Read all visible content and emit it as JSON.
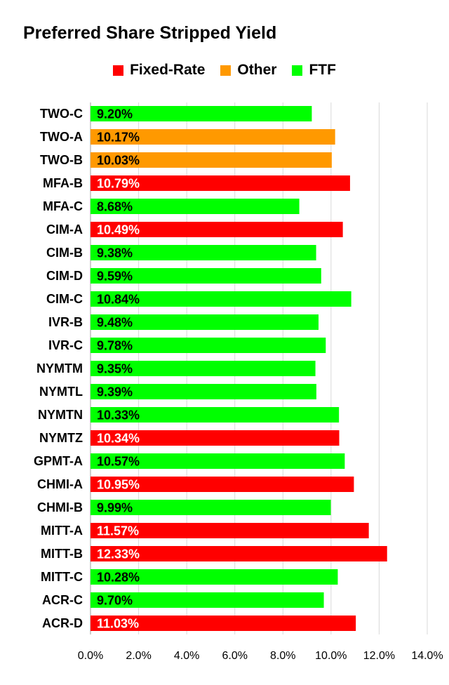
{
  "chart_data": {
    "type": "bar",
    "orientation": "horizontal",
    "title": "Preferred Share Stripped Yield",
    "xlabel": "",
    "ylabel": "",
    "xlim": [
      0,
      14
    ],
    "x_ticks": [
      "0.0%",
      "2.0%",
      "4.0%",
      "6.0%",
      "8.0%",
      "10.0%",
      "12.0%",
      "14.0%"
    ],
    "grid": "vertical",
    "legend_position": "top",
    "legend": [
      {
        "name": "Fixed-Rate",
        "color": "#ff0000"
      },
      {
        "name": "Other",
        "color": "#ff9900"
      },
      {
        "name": "FTF",
        "color": "#00ff00"
      }
    ],
    "categories": [
      "TWO-C",
      "TWO-A",
      "TWO-B",
      "MFA-B",
      "MFA-C",
      "CIM-A",
      "CIM-B",
      "CIM-D",
      "CIM-C",
      "IVR-B",
      "IVR-C",
      "NYMTM",
      "NYMTL",
      "NYMTN",
      "NYMTZ",
      "GPMT-A",
      "CHMI-A",
      "CHMI-B",
      "MITT-A",
      "MITT-B",
      "MITT-C",
      "ACR-C",
      "ACR-D"
    ],
    "values": [
      9.2,
      10.17,
      10.03,
      10.79,
      8.68,
      10.49,
      9.38,
      9.59,
      10.84,
      9.48,
      9.78,
      9.35,
      9.39,
      10.33,
      10.34,
      10.57,
      10.95,
      9.99,
      11.57,
      12.33,
      10.28,
      9.7,
      11.03
    ],
    "value_labels": [
      "9.20%",
      "10.17%",
      "10.03%",
      "10.79%",
      "8.68%",
      "10.49%",
      "9.38%",
      "9.59%",
      "10.84%",
      "9.48%",
      "9.78%",
      "9.35%",
      "9.39%",
      "10.33%",
      "10.34%",
      "10.57%",
      "10.95%",
      "9.99%",
      "11.57%",
      "12.33%",
      "10.28%",
      "9.70%",
      "11.03%"
    ],
    "groups": [
      "FTF",
      "Other",
      "Other",
      "Fixed-Rate",
      "FTF",
      "Fixed-Rate",
      "FTF",
      "FTF",
      "FTF",
      "FTF",
      "FTF",
      "FTF",
      "FTF",
      "FTF",
      "Fixed-Rate",
      "FTF",
      "Fixed-Rate",
      "FTF",
      "Fixed-Rate",
      "Fixed-Rate",
      "FTF",
      "FTF",
      "Fixed-Rate"
    ]
  }
}
